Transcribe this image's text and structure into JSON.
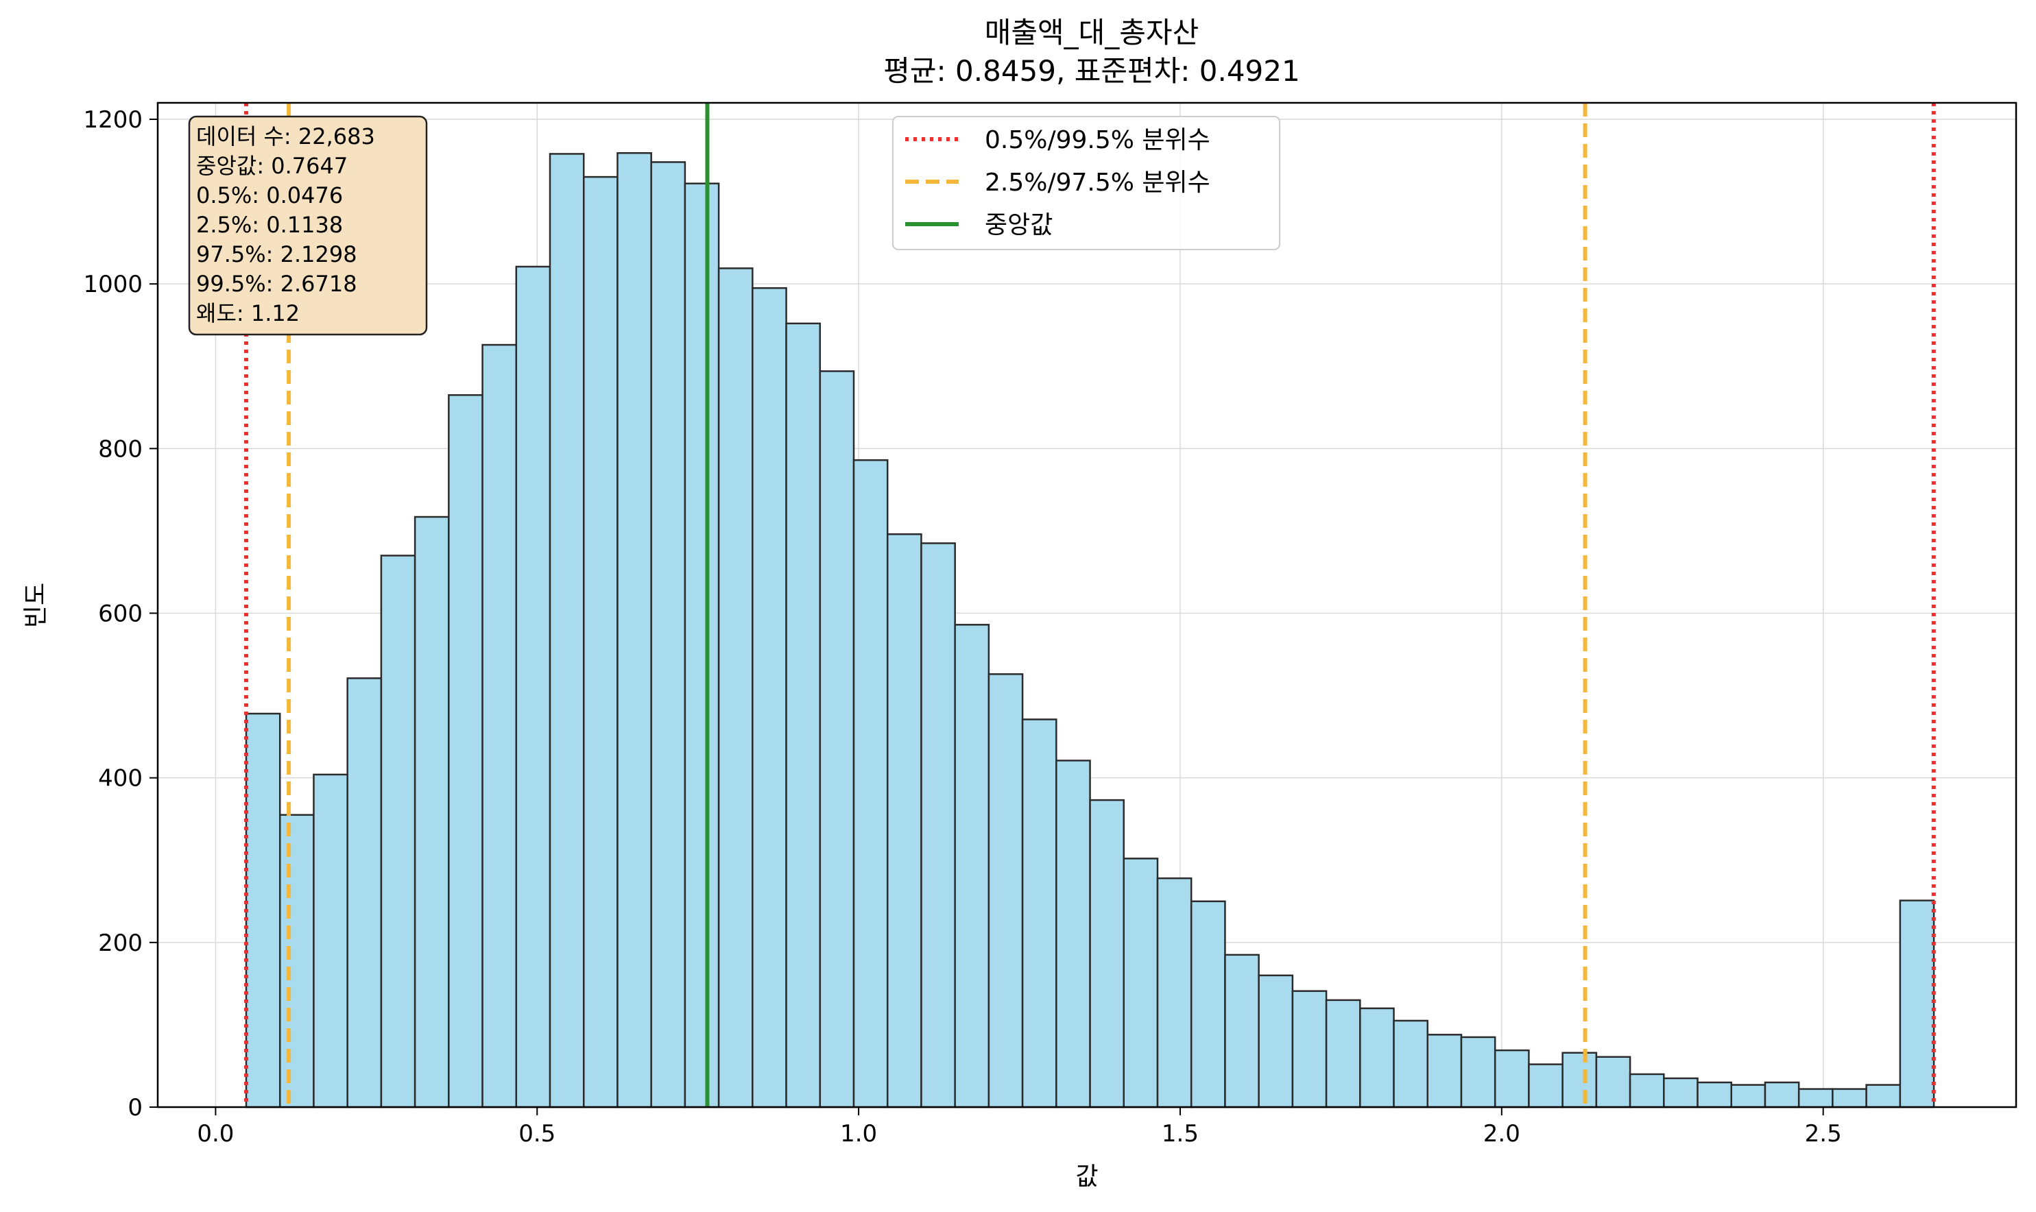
{
  "chart_data": {
    "type": "bar",
    "title": "매출액_대_총자산",
    "subtitle": "평균: 0.8459, 표준편차: 0.4921",
    "xlabel": "값",
    "ylabel": "빈도",
    "xlim": [
      -0.09,
      2.8
    ],
    "ylim": [
      0,
      1220
    ],
    "x_ticks": [
      0.0,
      0.5,
      1.0,
      1.5,
      2.0,
      2.5
    ],
    "x_tick_labels": [
      "0.0",
      "0.5",
      "1.0",
      "1.5",
      "2.0",
      "2.5"
    ],
    "y_ticks": [
      0,
      200,
      400,
      600,
      800,
      1000,
      1200
    ],
    "y_tick_labels": [
      "0",
      "200",
      "400",
      "600",
      "800",
      "1000",
      "1200"
    ],
    "grid": true,
    "bin_start": 0.0476,
    "bin_width": 0.05249,
    "counts": [
      478,
      355,
      404,
      521,
      670,
      717,
      865,
      926,
      1021,
      1158,
      1130,
      1159,
      1148,
      1122,
      1019,
      995,
      952,
      894,
      786,
      696,
      685,
      586,
      526,
      471,
      421,
      373,
      302,
      278,
      250,
      185,
      160,
      141,
      130,
      120,
      105,
      88,
      85,
      69,
      52,
      66,
      61,
      40,
      35,
      30,
      27,
      30,
      22,
      22,
      27,
      251
    ],
    "bar_color": "#a9dbee",
    "bar_edge_color": "#2b2b2b",
    "vlines": [
      {
        "x": 0.0476,
        "color": "#ee3030",
        "style": "dotted"
      },
      {
        "x": 2.6718,
        "color": "#ee3030",
        "style": "dotted"
      },
      {
        "x": 0.1138,
        "color": "#f5b73a",
        "style": "dashed"
      },
      {
        "x": 2.1298,
        "color": "#f5b73a",
        "style": "dashed"
      },
      {
        "x": 0.7647,
        "color": "#2a9130",
        "style": "solid"
      }
    ],
    "legend": {
      "placement": "top-center",
      "entries": [
        {
          "label": "0.5%/99.5% 분위수",
          "color": "#ee3030",
          "style": "dotted"
        },
        {
          "label": "2.5%/97.5% 분위수",
          "color": "#f5b73a",
          "style": "dashed"
        },
        {
          "label": "중앙값",
          "color": "#2a9130",
          "style": "solid"
        }
      ]
    },
    "stats_box": {
      "placement": "top-left",
      "background": "#f6e2c0",
      "lines": [
        "데이터 수: 22,683",
        "중앙값: 0.7647",
        "0.5%: 0.0476",
        "2.5%: 0.1138",
        "97.5%: 2.1298",
        "99.5%: 2.6718",
        "왜도: 1.12"
      ]
    }
  }
}
